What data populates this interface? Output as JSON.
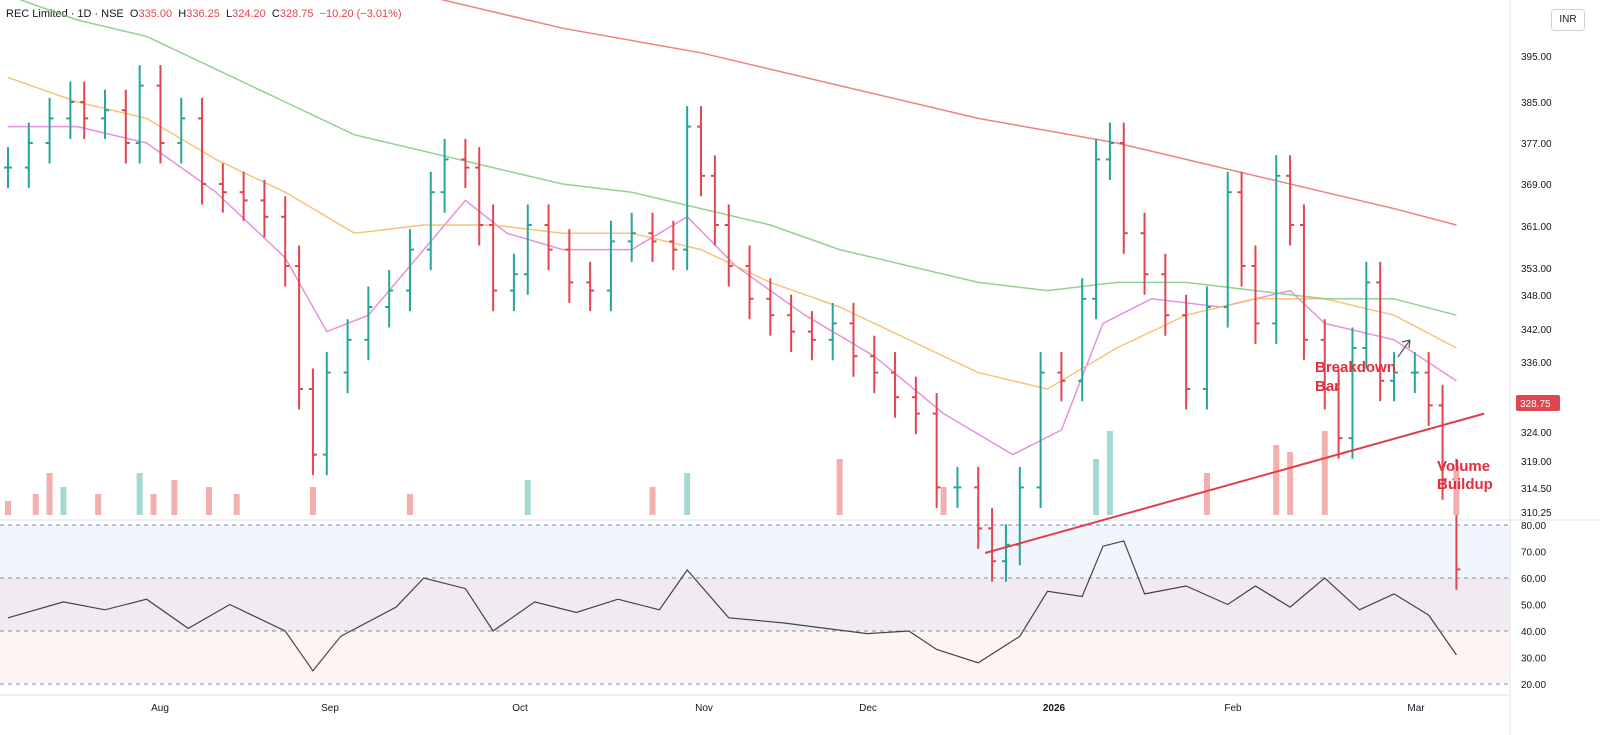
{
  "header": {
    "symbol": "REC Limited",
    "interval": "1D",
    "exchange": "NSE",
    "open_label": "O",
    "open": "335.00",
    "high_label": "H",
    "high": "336.25",
    "low_label": "L",
    "low": "324.20",
    "close_label": "C",
    "close": "328.75",
    "change": "−10.20 (−3.01%)",
    "currency": "INR"
  },
  "colors": {
    "up": "#26a69a",
    "down": "#e0464f",
    "up_volume": "#a6d8d2",
    "down_volume": "#f3aeb0",
    "ema_short": "#e07fd8",
    "ema_mid": "#f7b864",
    "ema_long": "#81c784",
    "ema_200": "#ef6b6b",
    "trendline": "#e23e4b",
    "rsi_line": "#444444",
    "annotation": "#e0303d"
  },
  "annotations": {
    "breakdown_line1": "Breakdown",
    "breakdown_line2": "Bar",
    "volume_line1": "Volume",
    "volume_line2": "Buildup"
  },
  "chart_data": {
    "type": "line",
    "title": "REC Limited · 1D · NSE",
    "price_axis": {
      "ticks": [
        "395.00",
        "385.00",
        "377.00",
        "369.00",
        "361.00",
        "353.00",
        "348.00",
        "342.00",
        "336.00",
        "324.00",
        "319.00",
        "314.50",
        "310.25"
      ],
      "last_price_label": "328.75"
    },
    "rsi_axis": {
      "ticks": [
        "80.00",
        "70.00",
        "60.00",
        "50.00",
        "40.00",
        "30.00",
        "20.00"
      ],
      "range": [
        20,
        80
      ],
      "levels": [
        80,
        60,
        40,
        20
      ]
    },
    "x_labels": [
      "Aug",
      "Sep",
      "Oct",
      "Nov",
      "Dec",
      "2026",
      "Feb",
      "Mar"
    ],
    "price_series": [
      {
        "x": 0,
        "y": 377
      },
      {
        "x": 3,
        "y": 380
      },
      {
        "x": 6,
        "y": 383
      },
      {
        "x": 9,
        "y": 385
      },
      {
        "x": 11,
        "y": 383
      },
      {
        "x": 14,
        "y": 384
      },
      {
        "x": 17,
        "y": 380
      },
      {
        "x": 19,
        "y": 387
      },
      {
        "x": 22,
        "y": 380
      },
      {
        "x": 25,
        "y": 383
      },
      {
        "x": 28,
        "y": 375
      },
      {
        "x": 31,
        "y": 374
      },
      {
        "x": 34,
        "y": 373
      },
      {
        "x": 37,
        "y": 371
      },
      {
        "x": 40,
        "y": 365
      },
      {
        "x": 42,
        "y": 350
      },
      {
        "x": 44,
        "y": 342
      },
      {
        "x": 46,
        "y": 352
      },
      {
        "x": 49,
        "y": 356
      },
      {
        "x": 52,
        "y": 360
      },
      {
        "x": 55,
        "y": 362
      },
      {
        "x": 58,
        "y": 367
      },
      {
        "x": 61,
        "y": 374
      },
      {
        "x": 63,
        "y": 378
      },
      {
        "x": 66,
        "y": 377
      },
      {
        "x": 68,
        "y": 370
      },
      {
        "x": 70,
        "y": 362
      },
      {
        "x": 73,
        "y": 364
      },
      {
        "x": 75,
        "y": 370
      },
      {
        "x": 78,
        "y": 367
      },
      {
        "x": 81,
        "y": 363
      },
      {
        "x": 84,
        "y": 362
      },
      {
        "x": 87,
        "y": 368
      },
      {
        "x": 90,
        "y": 369
      },
      {
        "x": 93,
        "y": 368
      },
      {
        "x": 96,
        "y": 367
      },
      {
        "x": 98,
        "y": 382
      },
      {
        "x": 100,
        "y": 376
      },
      {
        "x": 102,
        "y": 370
      },
      {
        "x": 104,
        "y": 365
      },
      {
        "x": 107,
        "y": 361
      },
      {
        "x": 110,
        "y": 359
      },
      {
        "x": 113,
        "y": 357
      },
      {
        "x": 116,
        "y": 356
      },
      {
        "x": 119,
        "y": 358
      },
      {
        "x": 122,
        "y": 354
      },
      {
        "x": 125,
        "y": 352
      },
      {
        "x": 128,
        "y": 349
      },
      {
        "x": 131,
        "y": 347
      },
      {
        "x": 134,
        "y": 338
      },
      {
        "x": 137,
        "y": 338
      },
      {
        "x": 140,
        "y": 333
      },
      {
        "x": 142,
        "y": 329
      },
      {
        "x": 144,
        "y": 331
      },
      {
        "x": 146,
        "y": 338
      },
      {
        "x": 149,
        "y": 352
      },
      {
        "x": 152,
        "y": 351
      },
      {
        "x": 155,
        "y": 361
      },
      {
        "x": 157,
        "y": 378
      },
      {
        "x": 159,
        "y": 380
      },
      {
        "x": 161,
        "y": 369
      },
      {
        "x": 164,
        "y": 364
      },
      {
        "x": 167,
        "y": 359
      },
      {
        "x": 170,
        "y": 350
      },
      {
        "x": 173,
        "y": 360
      },
      {
        "x": 176,
        "y": 374
      },
      {
        "x": 178,
        "y": 365
      },
      {
        "x": 180,
        "y": 358
      },
      {
        "x": 183,
        "y": 376
      },
      {
        "x": 185,
        "y": 370
      },
      {
        "x": 187,
        "y": 356
      },
      {
        "x": 190,
        "y": 350
      },
      {
        "x": 192,
        "y": 344
      },
      {
        "x": 194,
        "y": 355
      },
      {
        "x": 196,
        "y": 363
      },
      {
        "x": 198,
        "y": 351
      },
      {
        "x": 200,
        "y": 352
      },
      {
        "x": 203,
        "y": 352
      },
      {
        "x": 205,
        "y": 348
      },
      {
        "x": 207,
        "y": 339
      },
      {
        "x": 209,
        "y": 328
      }
    ],
    "series": [
      {
        "name": "",
        "color_key": "ema_short",
        "values": [
          [
            0,
            382
          ],
          [
            10,
            382
          ],
          [
            20,
            380
          ],
          [
            30,
            374
          ],
          [
            40,
            366
          ],
          [
            46,
            357
          ],
          [
            52,
            359
          ],
          [
            60,
            367
          ],
          [
            66,
            373
          ],
          [
            72,
            369
          ],
          [
            80,
            367
          ],
          [
            90,
            367
          ],
          [
            98,
            371
          ],
          [
            105,
            365
          ],
          [
            115,
            359
          ],
          [
            125,
            354
          ],
          [
            135,
            347
          ],
          [
            145,
            342
          ],
          [
            152,
            345
          ],
          [
            158,
            358
          ],
          [
            165,
            361
          ],
          [
            175,
            360
          ],
          [
            185,
            362
          ],
          [
            190,
            358
          ],
          [
            200,
            356
          ],
          [
            209,
            351
          ]
        ]
      },
      {
        "name": "",
        "color_key": "ema_mid",
        "values": [
          [
            0,
            388
          ],
          [
            10,
            385
          ],
          [
            20,
            383
          ],
          [
            30,
            378
          ],
          [
            40,
            374
          ],
          [
            50,
            369
          ],
          [
            60,
            370
          ],
          [
            70,
            370
          ],
          [
            80,
            369
          ],
          [
            90,
            369
          ],
          [
            100,
            367
          ],
          [
            110,
            363
          ],
          [
            120,
            360
          ],
          [
            130,
            356
          ],
          [
            140,
            352
          ],
          [
            150,
            350
          ],
          [
            160,
            355
          ],
          [
            170,
            359
          ],
          [
            180,
            361
          ],
          [
            190,
            361
          ],
          [
            200,
            359
          ],
          [
            209,
            355
          ]
        ]
      },
      {
        "name": "",
        "color_key": "ema_long",
        "values": [
          [
            0,
            398
          ],
          [
            10,
            395
          ],
          [
            20,
            393
          ],
          [
            30,
            389
          ],
          [
            40,
            385
          ],
          [
            50,
            381
          ],
          [
            60,
            379
          ],
          [
            70,
            377
          ],
          [
            80,
            375
          ],
          [
            90,
            374
          ],
          [
            100,
            372
          ],
          [
            110,
            370
          ],
          [
            120,
            367
          ],
          [
            130,
            365
          ],
          [
            140,
            363
          ],
          [
            150,
            362
          ],
          [
            160,
            363
          ],
          [
            170,
            363
          ],
          [
            180,
            362
          ],
          [
            190,
            361
          ],
          [
            200,
            361
          ],
          [
            209,
            359
          ]
        ]
      },
      {
        "name": "",
        "color_key": "ema_200",
        "values": [
          [
            44,
            401
          ],
          [
            60,
            398
          ],
          [
            80,
            394
          ],
          [
            100,
            391
          ],
          [
            120,
            387
          ],
          [
            140,
            383
          ],
          [
            160,
            380
          ],
          [
            175,
            377
          ],
          [
            190,
            374
          ],
          [
            200,
            372
          ],
          [
            209,
            370
          ]
        ]
      }
    ],
    "volume": [
      {
        "x": 0,
        "v": 2,
        "up": false
      },
      {
        "x": 4,
        "v": 3,
        "up": false
      },
      {
        "x": 6,
        "v": 6,
        "up": false
      },
      {
        "x": 8,
        "v": 4,
        "up": true
      },
      {
        "x": 13,
        "v": 3,
        "up": false
      },
      {
        "x": 19,
        "v": 6,
        "up": true
      },
      {
        "x": 21,
        "v": 3,
        "up": false
      },
      {
        "x": 24,
        "v": 5,
        "up": false
      },
      {
        "x": 29,
        "v": 4,
        "up": false
      },
      {
        "x": 33,
        "v": 3,
        "up": false
      },
      {
        "x": 44,
        "v": 4,
        "up": false
      },
      {
        "x": 58,
        "v": 3,
        "up": false
      },
      {
        "x": 75,
        "v": 5,
        "up": true
      },
      {
        "x": 93,
        "v": 4,
        "up": false
      },
      {
        "x": 98,
        "v": 6,
        "up": true
      },
      {
        "x": 120,
        "v": 8,
        "up": false
      },
      {
        "x": 135,
        "v": 4,
        "up": false
      },
      {
        "x": 157,
        "v": 8,
        "up": true
      },
      {
        "x": 159,
        "v": 12,
        "up": true
      },
      {
        "x": 173,
        "v": 6,
        "up": false
      },
      {
        "x": 183,
        "v": 10,
        "up": false
      },
      {
        "x": 185,
        "v": 9,
        "up": false
      },
      {
        "x": 190,
        "v": 12,
        "up": false
      },
      {
        "x": 209,
        "v": 7,
        "up": false
      }
    ],
    "rsi": [
      [
        0,
        45
      ],
      [
        8,
        51
      ],
      [
        14,
        48
      ],
      [
        20,
        52
      ],
      [
        26,
        41
      ],
      [
        32,
        50
      ],
      [
        40,
        40
      ],
      [
        44,
        25
      ],
      [
        48,
        38
      ],
      [
        56,
        49
      ],
      [
        60,
        60
      ],
      [
        66,
        56
      ],
      [
        70,
        40
      ],
      [
        76,
        51
      ],
      [
        82,
        47
      ],
      [
        88,
        52
      ],
      [
        94,
        48
      ],
      [
        98,
        63
      ],
      [
        104,
        45
      ],
      [
        112,
        43
      ],
      [
        118,
        41
      ],
      [
        124,
        39
      ],
      [
        130,
        40
      ],
      [
        134,
        33
      ],
      [
        140,
        28
      ],
      [
        146,
        38
      ],
      [
        150,
        55
      ],
      [
        155,
        53
      ],
      [
        158,
        72
      ],
      [
        161,
        74
      ],
      [
        164,
        54
      ],
      [
        170,
        57
      ],
      [
        176,
        50
      ],
      [
        180,
        57
      ],
      [
        185,
        49
      ],
      [
        190,
        60
      ],
      [
        195,
        48
      ],
      [
        200,
        54
      ],
      [
        205,
        46
      ],
      [
        209,
        31
      ]
    ]
  }
}
